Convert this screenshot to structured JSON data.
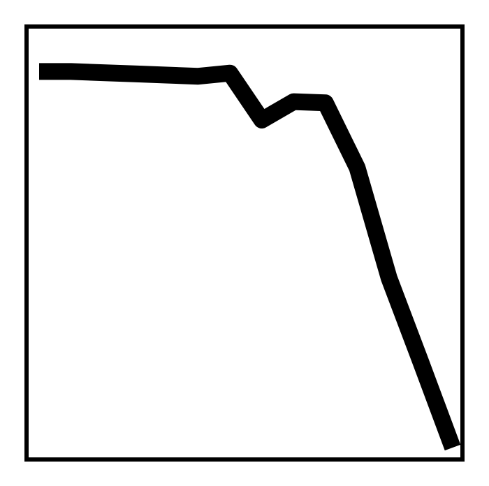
{
  "chart_data": {
    "type": "line",
    "title": "",
    "xlabel": "",
    "ylabel": "",
    "grid": false,
    "legend": "none",
    "x": [
      0,
      1,
      2,
      3,
      4,
      5,
      6,
      7,
      8,
      9,
      10,
      11,
      12,
      13
    ],
    "series": [
      {
        "color": "#000000",
        "values": [
          96,
          96,
          95.7,
          95.4,
          95.1,
          94.8,
          95.6,
          83.6,
          88.3,
          88.0,
          71.4,
          43.3,
          21.8,
          0
        ]
      }
    ],
    "xlim": [
      0,
      13
    ],
    "ylim": [
      0,
      100
    ]
  }
}
